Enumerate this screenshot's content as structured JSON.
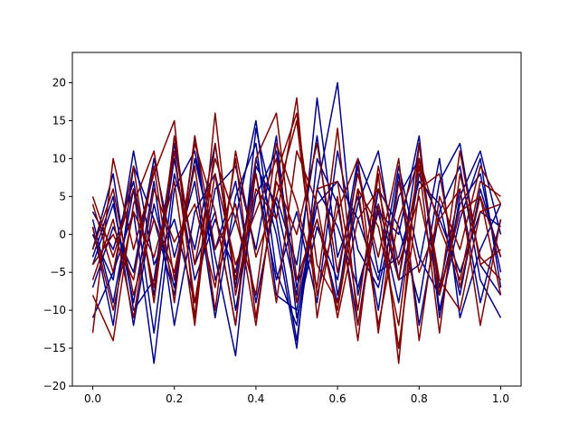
{
  "chart_data": {
    "type": "line",
    "title": "",
    "xlabel": "",
    "ylabel": "",
    "xlim": [
      -0.05,
      1.05
    ],
    "ylim": [
      -20,
      24
    ],
    "xticks": [
      0.0,
      0.2,
      0.4,
      0.6,
      0.8,
      1.0
    ],
    "xtick_labels": [
      "0.0",
      "0.2",
      "0.4",
      "0.6",
      "0.8",
      "1.0"
    ],
    "yticks": [
      -20,
      -15,
      -10,
      -5,
      0,
      5,
      10,
      15,
      20
    ],
    "ytick_labels": [
      "−20",
      "−15",
      "−10",
      "−5",
      "0",
      "5",
      "10",
      "15",
      "20"
    ],
    "grid": false,
    "legend": "none",
    "x": [
      0.0,
      0.05,
      0.1,
      0.15,
      0.2,
      0.25,
      0.3,
      0.35,
      0.4,
      0.45,
      0.5,
      0.55,
      0.6,
      0.65,
      0.7,
      0.75,
      0.8,
      0.85,
      0.9,
      0.95,
      1.0
    ],
    "series": [
      {
        "color": "#00008b",
        "values": [
          -2,
          8,
          -10,
          -6,
          12,
          -4,
          3,
          -12,
          14,
          2,
          -14,
          6,
          20,
          -8,
          4,
          -6,
          12,
          -10,
          2,
          10,
          -7
        ]
      },
      {
        "color": "#00008b",
        "values": [
          -11,
          -5,
          3,
          -17,
          6,
          11,
          -3,
          -16,
          9,
          4,
          -8,
          18,
          -3,
          5,
          -10,
          8,
          -12,
          3,
          9,
          -6,
          -11
        ]
      },
      {
        "color": "#00008b",
        "values": [
          1,
          -12,
          9,
          2,
          -8,
          13,
          -6,
          2,
          15,
          -5,
          -12,
          6,
          1,
          -7,
          3,
          0,
          13,
          -11,
          5,
          11,
          0
        ]
      },
      {
        "color": "#00008b",
        "values": [
          -4,
          4,
          -9,
          7,
          -12,
          3,
          8,
          -10,
          5,
          11,
          -7,
          2,
          -9,
          9,
          -5,
          -3,
          7,
          4,
          -8,
          6,
          -3
        ]
      },
      {
        "color": "#00008b",
        "values": [
          2,
          -9,
          6,
          -13,
          8,
          -2,
          12,
          -7,
          10,
          0,
          -15,
          10,
          4,
          -12,
          6,
          1,
          -9,
          7,
          12,
          -4,
          -8
        ]
      },
      {
        "color": "#00008b",
        "values": [
          -7,
          1,
          -5,
          10,
          -3,
          7,
          -11,
          5,
          12,
          -8,
          -10,
          4,
          7,
          2,
          -6,
          9,
          -3,
          -8,
          4,
          8,
          -5
        ]
      },
      {
        "color": "#00008b",
        "values": [
          0,
          -6,
          11,
          -4,
          2,
          -9,
          6,
          9,
          -2,
          13,
          -11,
          1,
          -6,
          10,
          3,
          -9,
          8,
          2,
          -5,
          3,
          1
        ]
      },
      {
        "color": "#00008b",
        "values": [
          -3,
          5,
          -12,
          4,
          -7,
          10,
          -2,
          7,
          -9,
          5,
          -4,
          13,
          -8,
          4,
          11,
          -6,
          -4,
          10,
          -11,
          -2,
          4
        ]
      },
      {
        "color": "#00008b",
        "values": [
          3,
          -2,
          7,
          -8,
          10,
          -6,
          2,
          -5,
          8,
          -6,
          3,
          -9,
          11,
          -2,
          -7,
          5,
          10,
          -7,
          6,
          -9,
          2
        ]
      },
      {
        "color": "#800000",
        "values": [
          -13,
          10,
          -2,
          8,
          15,
          -11,
          16,
          -8,
          6,
          2,
          18,
          -11,
          5,
          -14,
          8,
          -17,
          12,
          -8,
          3,
          5,
          -3
        ]
      },
      {
        "color": "#800000",
        "values": [
          -8,
          -14,
          4,
          11,
          -6,
          12,
          3,
          -12,
          10,
          16,
          -6,
          2,
          -10,
          6,
          -12,
          2,
          10,
          -6,
          -10,
          3,
          4
        ]
      },
      {
        "color": "#800000",
        "values": [
          4,
          -5,
          9,
          -9,
          13,
          -4,
          10,
          2,
          -8,
          12,
          4,
          -7,
          14,
          -12,
          4,
          -15,
          6,
          8,
          -7,
          5,
          -8
        ]
      },
      {
        "color": "#800000",
        "values": [
          -2,
          6,
          -8,
          2,
          -5,
          9,
          -10,
          11,
          -3,
          5,
          15,
          -8,
          3,
          10,
          -13,
          7,
          -5,
          2,
          6,
          -12,
          2
        ]
      },
      {
        "color": "#800000",
        "values": [
          1,
          -10,
          3,
          -3,
          7,
          -12,
          12,
          -6,
          8,
          -9,
          11,
          4,
          -11,
          2,
          6,
          -6,
          9,
          -13,
          8,
          -3,
          -6
        ]
      },
      {
        "color": "#800000",
        "values": [
          -6,
          2,
          -11,
          6,
          -1,
          4,
          -7,
          10,
          -11,
          7,
          0,
          12,
          -5,
          8,
          -3,
          10,
          -14,
          5,
          -2,
          9,
          4
        ]
      },
      {
        "color": "#800000",
        "values": [
          5,
          -3,
          6,
          -7,
          11,
          -9,
          8,
          -4,
          3,
          10,
          -9,
          6,
          7,
          -10,
          9,
          -4,
          5,
          -8,
          11,
          -4,
          -2
        ]
      },
      {
        "color": "#800000",
        "values": [
          -4,
          0,
          -6,
          9,
          -9,
          13,
          -2,
          4,
          -12,
          8,
          16,
          -4,
          -9,
          6,
          1,
          -12,
          10,
          1,
          -6,
          7,
          5
        ]
      }
    ]
  }
}
